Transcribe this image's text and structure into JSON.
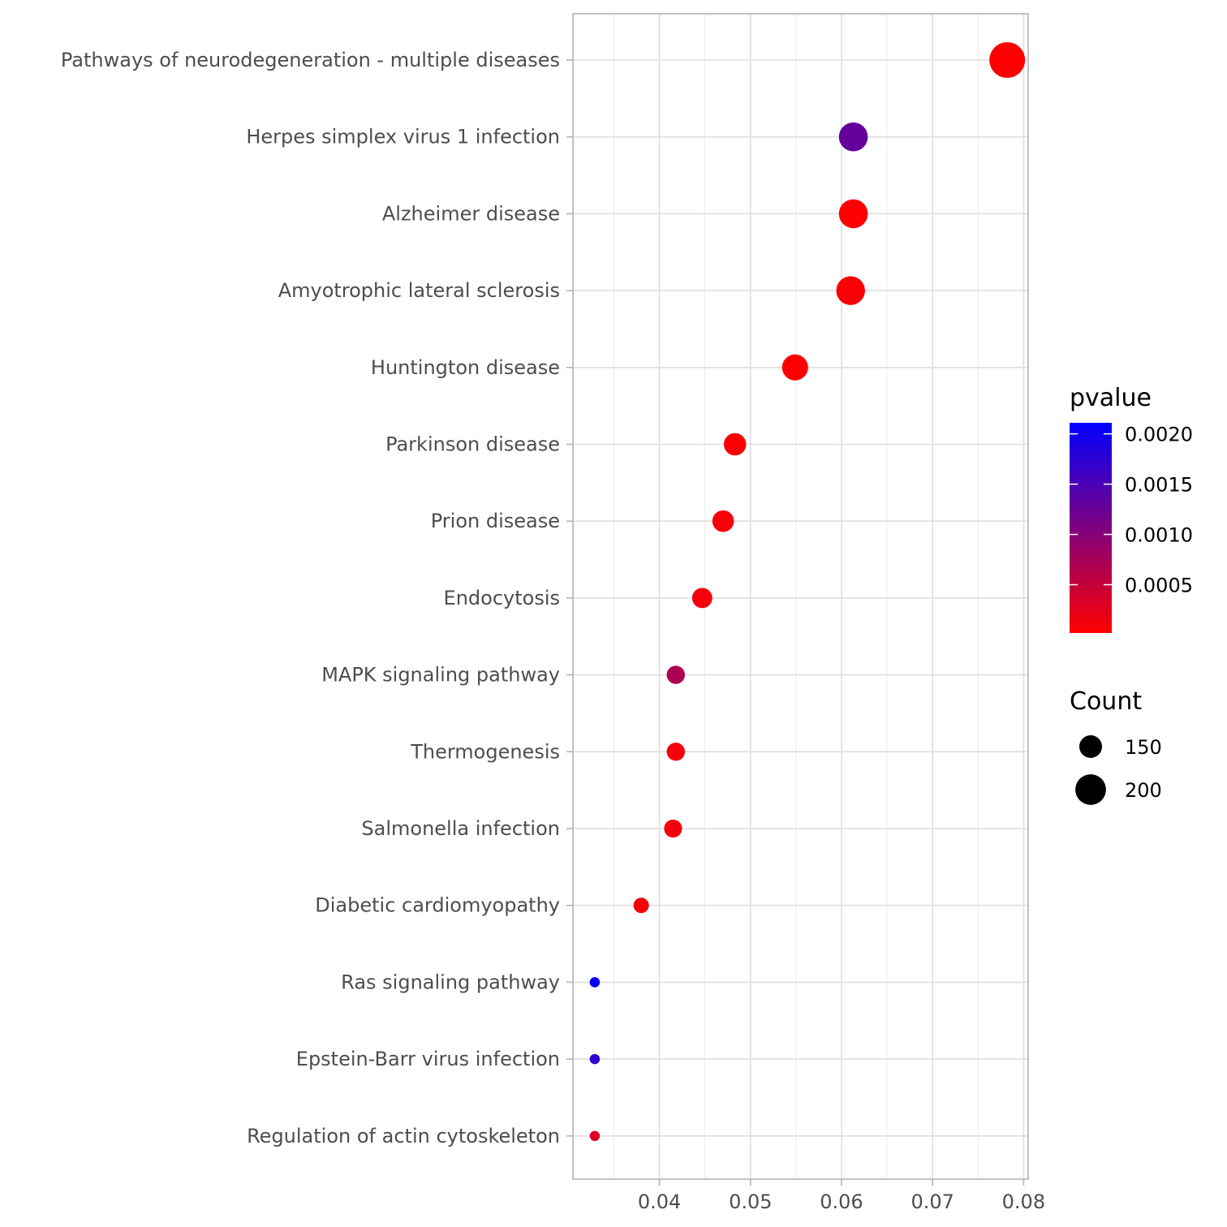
{
  "chart_data": {
    "type": "scatter",
    "title": "",
    "xlabel": "",
    "ylabel": "",
    "xlim": [
      0.0305,
      0.0805
    ],
    "x_ticks": [
      0.04,
      0.05,
      0.06,
      0.07,
      0.08
    ],
    "x_tick_labels": [
      "0.04",
      "0.05",
      "0.06",
      "0.07",
      "0.08"
    ],
    "grid": true,
    "categories": [
      "Pathways of neurodegeneration - multiple diseases",
      "Herpes simplex virus 1 infection",
      "Alzheimer disease",
      "Amyotrophic lateral sclerosis",
      "Huntington disease",
      "Parkinson disease",
      "Prion disease",
      "Endocytosis",
      "MAPK signaling pathway",
      "Thermogenesis",
      "Salmonella infection",
      "Diabetic cardiomyopathy",
      "Ras signaling pathway",
      "Epstein-Barr virus infection",
      "Regulation of actin cytoskeleton"
    ],
    "points": [
      {
        "x": 0.0782,
        "count": 240,
        "pvalue": 2e-05
      },
      {
        "x": 0.0613,
        "count": 188,
        "pvalue": 0.0013
      },
      {
        "x": 0.0613,
        "count": 188,
        "pvalue": 3e-05
      },
      {
        "x": 0.061,
        "count": 187,
        "pvalue": 5e-05
      },
      {
        "x": 0.0549,
        "count": 169,
        "pvalue": 4e-05
      },
      {
        "x": 0.0483,
        "count": 148,
        "pvalue": 6e-05
      },
      {
        "x": 0.047,
        "count": 144,
        "pvalue": 8e-05
      },
      {
        "x": 0.0447,
        "count": 137,
        "pvalue": 0.0001
      },
      {
        "x": 0.0418,
        "count": 128,
        "pvalue": 0.0007
      },
      {
        "x": 0.0418,
        "count": 128,
        "pvalue": 0.0001
      },
      {
        "x": 0.0415,
        "count": 127,
        "pvalue": 0.00012
      },
      {
        "x": 0.038,
        "count": 117,
        "pvalue": 0.0001
      },
      {
        "x": 0.0329,
        "count": 101,
        "pvalue": 0.00205
      },
      {
        "x": 0.0329,
        "count": 101,
        "pvalue": 0.0017
      },
      {
        "x": 0.0329,
        "count": 101,
        "pvalue": 0.0003
      }
    ],
    "color_scale": {
      "title": "pvalue",
      "low_color": "#ff0000",
      "high_color": "#0000ff",
      "range": [
        2e-05,
        0.00211
      ],
      "ticks": [
        0.0005,
        0.001,
        0.0015,
        0.002
      ],
      "tick_labels": [
        "0.0005",
        "0.0010",
        "0.0015",
        "0.0020"
      ]
    },
    "size_legend": {
      "title": "Count",
      "count_range": [
        100,
        240
      ],
      "entries": [
        {
          "label": "150",
          "value": 150
        },
        {
          "label": "200",
          "value": 200
        }
      ]
    }
  }
}
